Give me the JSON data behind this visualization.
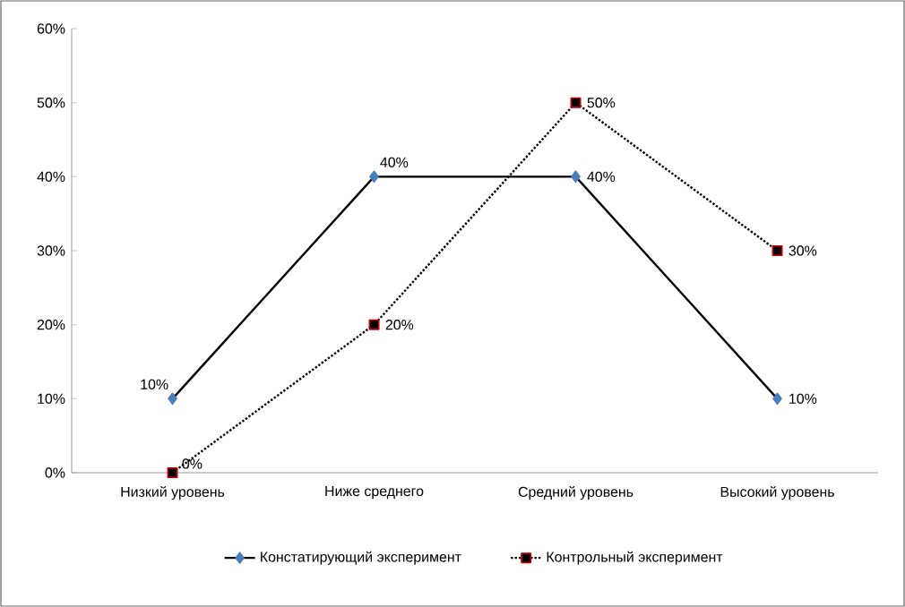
{
  "chart_data": {
    "type": "line",
    "categories": [
      "Низкий уровень",
      "Ниже среднего",
      "Средний уровень",
      "Высокий уровень"
    ],
    "series": [
      {
        "name": "Констатирующий эксперимент",
        "color": "#4a7ebb",
        "values": [
          10,
          40,
          40,
          10
        ],
        "value_labels": [
          "10%",
          "40%",
          "40%",
          "10%"
        ],
        "marker": "diamond",
        "line_style": "solid"
      },
      {
        "name": "Контрольный эксперимент",
        "color": "#000000",
        "values": [
          0,
          20,
          50,
          30
        ],
        "value_labels": [
          "0%",
          "20%",
          "50%",
          "30%"
        ],
        "marker": "square",
        "line_style": "dotted"
      }
    ],
    "ylim": [
      0,
      60
    ],
    "yticks": [
      {
        "value": 0,
        "label": "0%"
      },
      {
        "value": 10,
        "label": "10%"
      },
      {
        "value": 20,
        "label": "20%"
      },
      {
        "value": 30,
        "label": "30%"
      },
      {
        "value": 40,
        "label": "40%"
      },
      {
        "value": 50,
        "label": "50%"
      },
      {
        "value": 60,
        "label": "60%"
      }
    ],
    "grid": false,
    "legend": "bottom"
  }
}
